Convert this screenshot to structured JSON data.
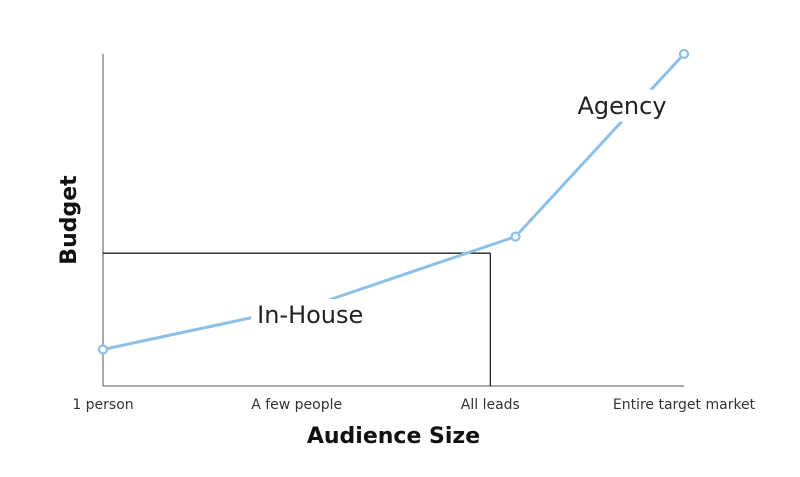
{
  "chart_data": {
    "type": "line",
    "title": "",
    "xlabel": "Audience Size",
    "ylabel": "Budget",
    "categories": [
      "1 person",
      "A few people",
      "All leads",
      "Entire target market"
    ],
    "x_range": [
      0,
      3
    ],
    "ylim": [
      0,
      1
    ],
    "grid": false,
    "legend": "none",
    "series": [
      {
        "color": "#8dc0e8",
        "points": [
          {
            "x": 0,
            "y": 0.11
          },
          {
            "x": 1.12,
            "y": 0.25
          },
          {
            "x": 2.13,
            "y": 0.45
          },
          {
            "x": 3.0,
            "y": 1.0
          }
        ],
        "markers_at": [
          0,
          2,
          3
        ]
      }
    ],
    "reference_box": {
      "x_to": 2.0,
      "y_to": 0.4,
      "color": "#222222"
    },
    "annotations": [
      {
        "text": "In-House",
        "x": 1.07,
        "y": 0.19
      },
      {
        "text": "Agency",
        "x": 2.68,
        "y": 0.82
      }
    ]
  }
}
